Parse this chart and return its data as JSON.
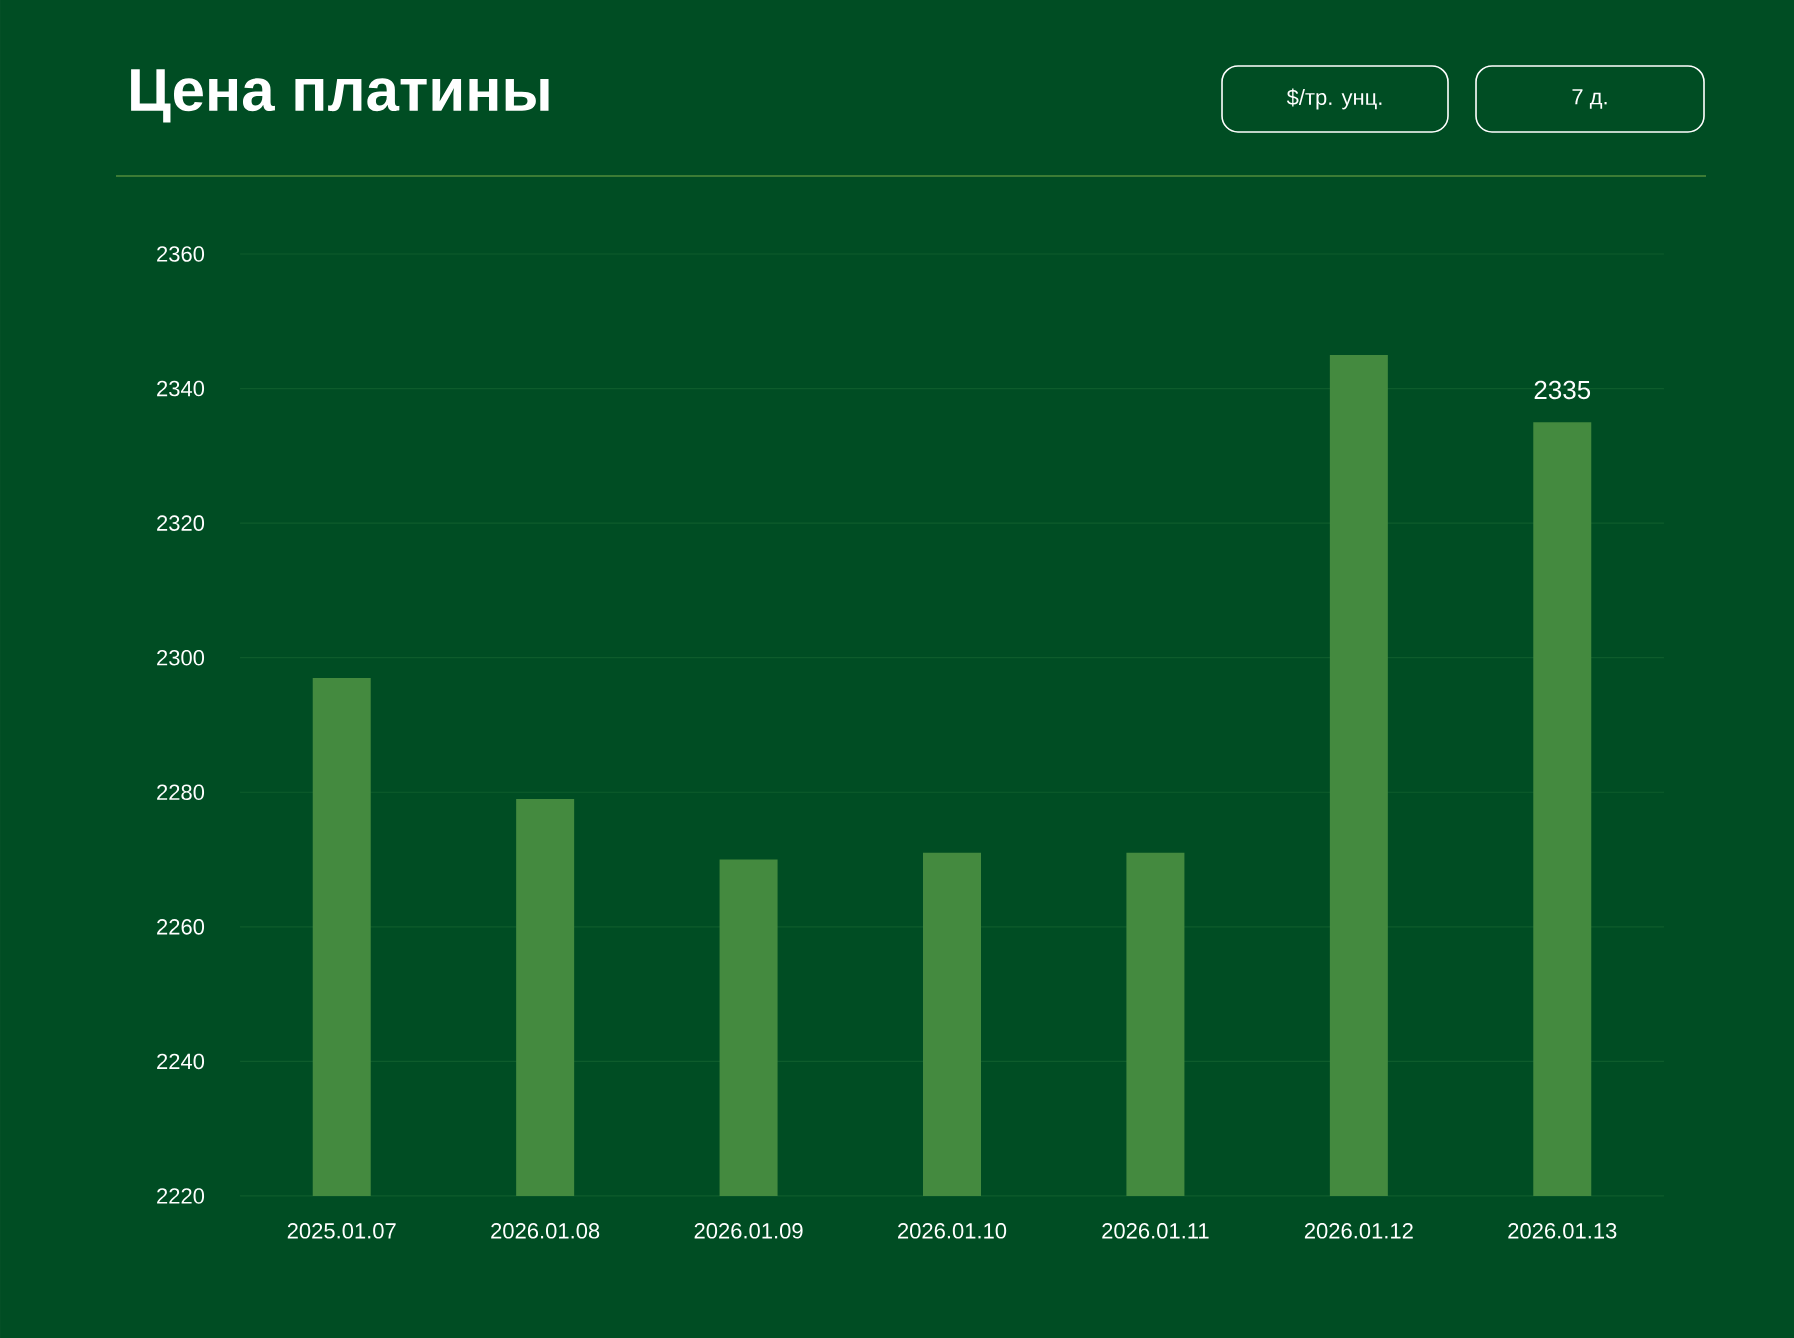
{
  "chart_data": {
    "type": "bar",
    "title": "Цена платины",
    "categories": [
      "2025.01.07",
      "2026.01.08",
      "2026.01.09",
      "2026.01.10",
      "2026.01.11",
      "2026.01.12",
      "2026.01.13"
    ],
    "values": [
      2297,
      2279,
      2270,
      2271,
      2271,
      2345,
      2335
    ],
    "value_labels": [
      null,
      null,
      null,
      null,
      null,
      null,
      "2335"
    ],
    "color": "#448a3f",
    "ylim": [
      2220,
      2360
    ],
    "yticks": [
      2220,
      2240,
      2260,
      2280,
      2300,
      2320,
      2340,
      2360
    ],
    "grid": "y",
    "annotations": [
      "$/тр. унц.",
      "7 д."
    ]
  }
}
